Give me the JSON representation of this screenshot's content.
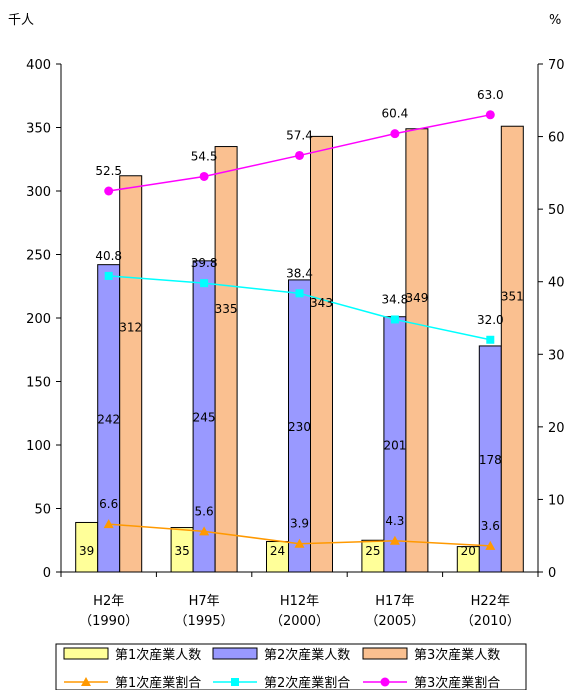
{
  "chart_data": {
    "type": "bar",
    "categories": [
      {
        "line1": "H2年",
        "line2": "（1990）"
      },
      {
        "line1": "H7年",
        "line2": "（1995）"
      },
      {
        "line1": "H12年",
        "line2": "（2000）"
      },
      {
        "line1": "H17年",
        "line2": "（2005）"
      },
      {
        "line1": "H22年",
        "line2": "（2010）"
      }
    ],
    "left_axis": {
      "unit_label": "千人",
      "min": 0,
      "max": 400,
      "step": 50
    },
    "right_axis": {
      "unit_label": "%",
      "min": 0,
      "max": 70,
      "step": 10
    },
    "bar_series": [
      {
        "name": "第1次産業人数",
        "color": "#FFFF99",
        "values": [
          39,
          35,
          24,
          25,
          20
        ]
      },
      {
        "name": "第2次産業人数",
        "color": "#9999FF",
        "values": [
          242,
          245,
          230,
          201,
          178
        ]
      },
      {
        "name": "第3次産業人数",
        "color": "#FAC090",
        "values": [
          312,
          335,
          343,
          349,
          351
        ]
      }
    ],
    "line_series": [
      {
        "name": "第1次産業割合",
        "color": "#FF9900",
        "marker": "triangle",
        "values": [
          6.6,
          5.6,
          3.9,
          4.3,
          3.6
        ]
      },
      {
        "name": "第2次産業割合",
        "color": "#00FFFF",
        "marker": "square",
        "values": [
          40.8,
          39.8,
          38.4,
          34.8,
          32.0
        ]
      },
      {
        "name": "第3次産業割合",
        "color": "#FF00FF",
        "marker": "circle",
        "values": [
          52.5,
          54.5,
          57.4,
          60.4,
          63.0
        ]
      }
    ],
    "grid": false,
    "legend_position": "bottom"
  }
}
